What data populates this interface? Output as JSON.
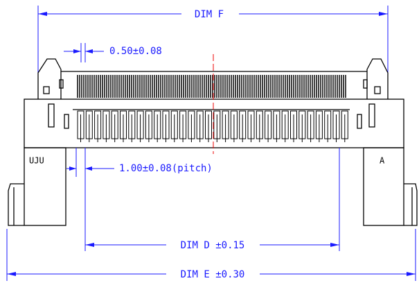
{
  "dimensions": {
    "dim_f": "DIM F",
    "contact_width": "0.50±0.08",
    "pitch": "1.00±0.08(pitch)",
    "dim_d": "DIM D ±0.15",
    "dim_e": "DIM E ±0.30"
  },
  "markings": {
    "left": "UJU",
    "right": "A"
  }
}
